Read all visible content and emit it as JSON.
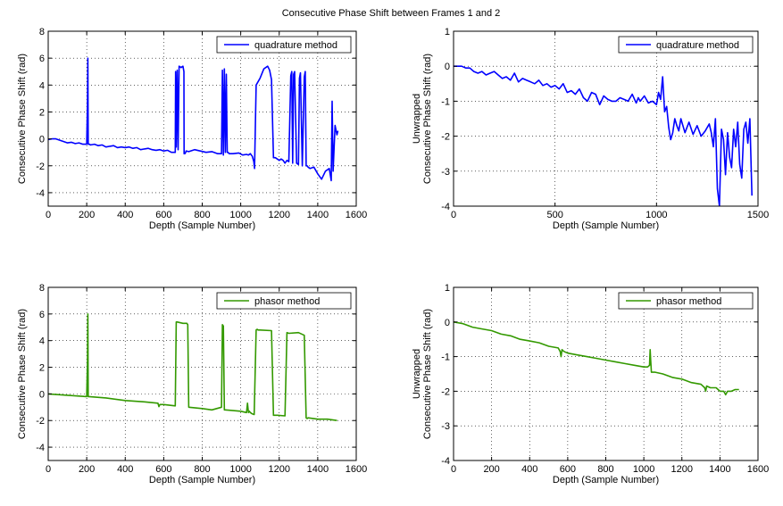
{
  "figure": {
    "suptitle": "Consecutive Phase Shift between Frames 1 and 2"
  },
  "chart_data": [
    {
      "type": "line",
      "xlabel": "Depth (Sample Number)",
      "ylabel": [
        "Consecutive Phase Shift (rad)"
      ],
      "xlim": [
        0,
        1600
      ],
      "ylim": [
        -5,
        8
      ],
      "xticks": [
        0,
        200,
        400,
        600,
        800,
        1000,
        1200,
        1400,
        1600
      ],
      "yticks": [
        -4,
        -2,
        0,
        2,
        4,
        6,
        8
      ],
      "grid": true,
      "legend_position": "top-right",
      "series": [
        {
          "name": "quadrature method",
          "color": "#0000ff",
          "x": [
            0,
            20,
            40,
            60,
            80,
            100,
            120,
            140,
            160,
            180,
            200,
            204,
            206,
            208,
            210,
            214,
            220,
            240,
            260,
            280,
            300,
            320,
            340,
            360,
            380,
            400,
            420,
            440,
            460,
            480,
            500,
            520,
            540,
            560,
            580,
            600,
            620,
            640,
            660,
            662,
            665,
            670,
            675,
            680,
            690,
            700,
            705,
            706,
            710,
            714,
            716,
            730,
            760,
            790,
            820,
            850,
            880,
            900,
            905,
            910,
            915,
            920,
            925,
            930,
            934,
            940,
            960,
            990,
            1010,
            1030,
            1040,
            1050,
            1060,
            1068,
            1072,
            1080,
            1100,
            1120,
            1140,
            1150,
            1160,
            1170,
            1180,
            1190,
            1200,
            1210,
            1220,
            1230,
            1240,
            1250,
            1260,
            1265,
            1270,
            1275,
            1280,
            1290,
            1300,
            1305,
            1310,
            1320,
            1330,
            1335,
            1340,
            1345,
            1350,
            1360,
            1380,
            1400,
            1420,
            1440,
            1460,
            1470,
            1475,
            1480,
            1490,
            1500,
            1505
          ],
          "y": [
            -0.05,
            0,
            0,
            -0.1,
            -0.2,
            -0.3,
            -0.25,
            -0.35,
            -0.3,
            -0.4,
            -0.4,
            2.7,
            6,
            -0.4,
            -0.4,
            -0.4,
            -0.45,
            -0.4,
            -0.5,
            -0.45,
            -0.6,
            -0.55,
            -0.5,
            -0.65,
            -0.6,
            -0.65,
            -0.6,
            -0.7,
            -0.65,
            -0.8,
            -0.75,
            -0.7,
            -0.8,
            -0.85,
            -0.8,
            -0.9,
            -0.85,
            -1,
            -1,
            5,
            -0.6,
            5.1,
            -0.8,
            5.4,
            5.3,
            5.4,
            5,
            -1.1,
            -1.1,
            -1,
            -0.9,
            -0.95,
            -0.8,
            -0.9,
            -1,
            -0.95,
            -1.1,
            -1.1,
            5.1,
            -1.2,
            5.2,
            -1,
            4.8,
            -1,
            -1,
            -1.1,
            -1.1,
            -1.05,
            -1.2,
            -1.15,
            -1.2,
            -1.1,
            -1.3,
            -1.7,
            -2.2,
            4,
            4.5,
            5.2,
            5.4,
            5.1,
            4.4,
            -1.4,
            -1.4,
            -1.5,
            -1.6,
            -1.5,
            -1.6,
            -1.8,
            -1.6,
            -1.7,
            4.7,
            5,
            -1.8,
            4.8,
            5,
            -1.8,
            -1.9,
            4.5,
            4.9,
            -2,
            4.6,
            5,
            -2,
            -2,
            -2.1,
            -2.2,
            -2.1,
            -2.6,
            -3,
            -2.4,
            -2.2,
            -3.1,
            2.8,
            -2.4,
            1,
            0.3,
            0.6
          ]
        }
      ]
    },
    {
      "type": "line",
      "xlabel": "Depth (Sample Number)",
      "ylabel": [
        "Unwrapped",
        "Consecutive Phase Shift (rad)"
      ],
      "xlim": [
        0,
        1500
      ],
      "ylim": [
        -4,
        1
      ],
      "xticks": [
        0,
        500,
        1000,
        1500
      ],
      "yticks": [
        -4,
        -3,
        -2,
        -1,
        0,
        1
      ],
      "grid": true,
      "legend_position": "top-right",
      "series": [
        {
          "name": "quadrature method",
          "color": "#0000ff",
          "x": [
            0,
            20,
            40,
            60,
            80,
            100,
            120,
            140,
            160,
            180,
            200,
            220,
            240,
            260,
            280,
            300,
            320,
            340,
            360,
            380,
            400,
            420,
            440,
            460,
            480,
            500,
            520,
            540,
            560,
            580,
            600,
            620,
            640,
            660,
            680,
            700,
            720,
            740,
            760,
            780,
            800,
            820,
            840,
            860,
            880,
            900,
            910,
            920,
            940,
            960,
            980,
            1000,
            1010,
            1020,
            1030,
            1040,
            1050,
            1060,
            1070,
            1080,
            1090,
            1100,
            1110,
            1120,
            1130,
            1140,
            1160,
            1180,
            1200,
            1220,
            1240,
            1260,
            1270,
            1280,
            1290,
            1300,
            1310,
            1320,
            1330,
            1340,
            1350,
            1360,
            1370,
            1380,
            1390,
            1400,
            1410,
            1420,
            1430,
            1440,
            1450,
            1460,
            1470
          ],
          "y": [
            0,
            0,
            0,
            -0.05,
            -0.05,
            -0.15,
            -0.2,
            -0.15,
            -0.25,
            -0.2,
            -0.15,
            -0.25,
            -0.35,
            -0.3,
            -0.4,
            -0.2,
            -0.45,
            -0.35,
            -0.4,
            -0.45,
            -0.5,
            -0.4,
            -0.55,
            -0.5,
            -0.6,
            -0.55,
            -0.65,
            -0.5,
            -0.75,
            -0.7,
            -0.8,
            -0.65,
            -0.9,
            -1,
            -0.75,
            -0.8,
            -1.1,
            -0.85,
            -0.95,
            -1,
            -1,
            -0.9,
            -0.95,
            -1,
            -0.8,
            -1.05,
            -0.9,
            -1,
            -0.85,
            -1.05,
            -1,
            -1.1,
            -0.75,
            -0.95,
            -0.3,
            -1.3,
            -1.15,
            -1.75,
            -2.1,
            -1.9,
            -1.5,
            -1.7,
            -1.85,
            -1.5,
            -1.7,
            -1.9,
            -1.6,
            -1.95,
            -1.7,
            -2,
            -1.85,
            -1.65,
            -1.9,
            -2.3,
            -1.5,
            -3.5,
            -4,
            -1.8,
            -2.1,
            -3.1,
            -1.9,
            -2.6,
            -2.9,
            -1.8,
            -2.3,
            -1.6,
            -2.8,
            -3.2,
            -1.8,
            -1.6,
            -2.2,
            -1.5,
            -3.7
          ]
        }
      ]
    },
    {
      "type": "line",
      "xlabel": "Depth (Sample Number)",
      "ylabel": [
        "Consecutive Phase Shift (rad)"
      ],
      "xlim": [
        0,
        1600
      ],
      "ylim": [
        -5,
        8
      ],
      "xticks": [
        0,
        200,
        400,
        600,
        800,
        1000,
        1200,
        1400,
        1600
      ],
      "yticks": [
        -4,
        -2,
        0,
        2,
        4,
        6,
        8
      ],
      "grid": true,
      "legend_position": "top-right",
      "series": [
        {
          "name": "phasor method",
          "color": "#339900",
          "x": [
            0,
            100,
            200,
            204,
            206,
            208,
            212,
            300,
            400,
            500,
            570,
            575,
            580,
            600,
            660,
            665,
            670,
            700,
            720,
            725,
            730,
            800,
            850,
            900,
            905,
            910,
            915,
            920,
            1000,
            1030,
            1035,
            1040,
            1045,
            1050,
            1060,
            1070,
            1080,
            1085,
            1090,
            1100,
            1160,
            1170,
            1180,
            1190,
            1230,
            1240,
            1250,
            1300,
            1330,
            1340,
            1345,
            1350,
            1400,
            1450,
            1500
          ],
          "y": [
            0,
            -0.1,
            -0.2,
            2.5,
            6,
            -0.2,
            -0.2,
            -0.3,
            -0.5,
            -0.6,
            -0.7,
            -0.95,
            -0.8,
            -0.8,
            -0.9,
            5.4,
            5.4,
            5.3,
            5.3,
            5.2,
            -1,
            -1.1,
            -1.2,
            -1,
            5.2,
            5.1,
            -1.2,
            -1.2,
            -1.3,
            -1.4,
            -0.7,
            -1.4,
            -1.3,
            -1.4,
            -1.5,
            -1.55,
            4.8,
            4.85,
            4.8,
            4.8,
            4.75,
            -1.6,
            -1.6,
            -1.6,
            -1.65,
            4.6,
            4.55,
            4.6,
            4.4,
            -1.8,
            -1.85,
            -1.8,
            -1.9,
            -1.9,
            -2
          ]
        }
      ]
    },
    {
      "type": "line",
      "xlabel": "Depth (Sample Number)",
      "ylabel": [
        "Unwrapped",
        "Consecutive Phase Shift (rad)"
      ],
      "xlim": [
        0,
        1600
      ],
      "ylim": [
        -4,
        1
      ],
      "xticks": [
        0,
        200,
        400,
        600,
        800,
        1000,
        1200,
        1400,
        1600
      ],
      "yticks": [
        -4,
        -3,
        -2,
        -1,
        0,
        1
      ],
      "grid": true,
      "legend_position": "top-right",
      "series": [
        {
          "name": "phasor method",
          "color": "#339900",
          "x": [
            0,
            50,
            100,
            150,
            200,
            250,
            300,
            350,
            400,
            450,
            500,
            550,
            560,
            565,
            570,
            580,
            600,
            650,
            700,
            750,
            800,
            850,
            900,
            950,
            1000,
            1020,
            1030,
            1033,
            1036,
            1040,
            1060,
            1100,
            1150,
            1200,
            1250,
            1300,
            1320,
            1325,
            1330,
            1350,
            1380,
            1400,
            1420,
            1430,
            1440,
            1460,
            1480,
            1500
          ],
          "y": [
            0,
            -0.05,
            -0.15,
            -0.2,
            -0.25,
            -0.35,
            -0.4,
            -0.5,
            -0.55,
            -0.6,
            -0.7,
            -0.75,
            -0.85,
            -1,
            -0.8,
            -0.85,
            -0.9,
            -0.95,
            -1,
            -1.05,
            -1.1,
            -1.15,
            -1.2,
            -1.25,
            -1.3,
            -1.3,
            -1.25,
            -0.8,
            -1.1,
            -1.45,
            -1.45,
            -1.5,
            -1.6,
            -1.65,
            -1.75,
            -1.8,
            -1.9,
            -2,
            -1.85,
            -1.9,
            -1.9,
            -2,
            -2,
            -2.1,
            -2,
            -2,
            -1.95,
            -1.95
          ]
        }
      ]
    }
  ]
}
